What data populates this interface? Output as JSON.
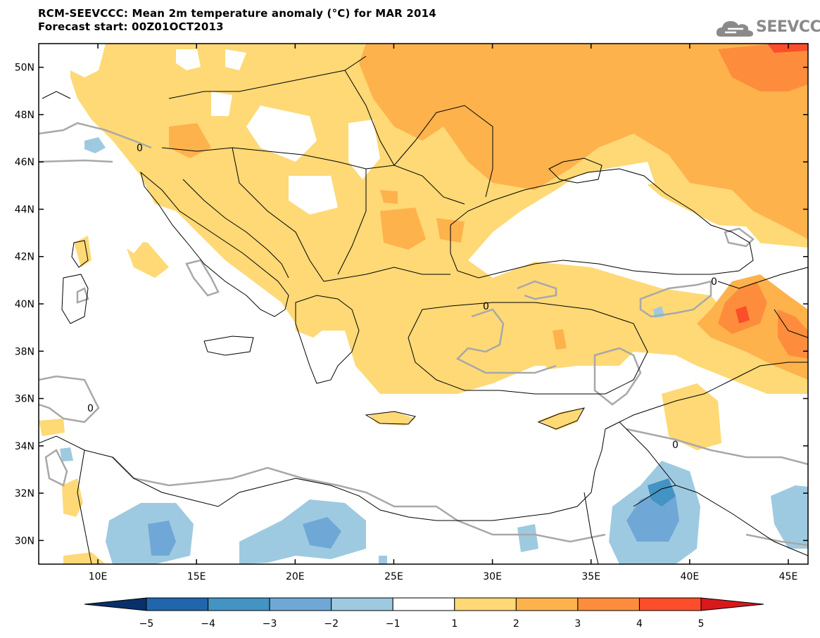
{
  "header": {
    "title": "RCM-SEEVCCC: Mean 2m temperature anomaly (°C) for MAR 2014",
    "subtitle": "Forecast start: 00Z01OCT2013"
  },
  "logo": {
    "text": "SEEVCCC",
    "icon": "cloud-icon"
  },
  "map": {
    "lon_range": [
      7,
      46
    ],
    "lat_range": [
      29,
      51
    ],
    "lon_ticks": [
      {
        "value": 10,
        "label": "10E"
      },
      {
        "value": 15,
        "label": "15E"
      },
      {
        "value": 20,
        "label": "20E"
      },
      {
        "value": 25,
        "label": "25E"
      },
      {
        "value": 30,
        "label": "30E"
      },
      {
        "value": 35,
        "label": "35E"
      },
      {
        "value": 40,
        "label": "40E"
      },
      {
        "value": 45,
        "label": "45E"
      }
    ],
    "lat_ticks": [
      {
        "value": 30,
        "label": "30N"
      },
      {
        "value": 32,
        "label": "32N"
      },
      {
        "value": 34,
        "label": "34N"
      },
      {
        "value": 36,
        "label": "36N"
      },
      {
        "value": 38,
        "label": "38N"
      },
      {
        "value": 40,
        "label": "40N"
      },
      {
        "value": 42,
        "label": "42N"
      },
      {
        "value": 44,
        "label": "44N"
      },
      {
        "value": 46,
        "label": "46N"
      },
      {
        "value": 48,
        "label": "48N"
      },
      {
        "value": 50,
        "label": "50N"
      }
    ],
    "contour_label": "0"
  },
  "colorbar": {
    "levels": [
      -5,
      -4,
      -3,
      -2,
      -1,
      1,
      2,
      3,
      4,
      5
    ],
    "labels": [
      "−5",
      "−4",
      "−3",
      "−2",
      "−1",
      "1",
      "2",
      "3",
      "4",
      "5"
    ],
    "colors": [
      "#08306b",
      "#2166ac",
      "#4393c3",
      "#6fa8d6",
      "#9ecae1",
      "#ffffff",
      "#fed976",
      "#feb24c",
      "#fd8d3c",
      "#fc4e2a",
      "#d7191c"
    ]
  }
}
